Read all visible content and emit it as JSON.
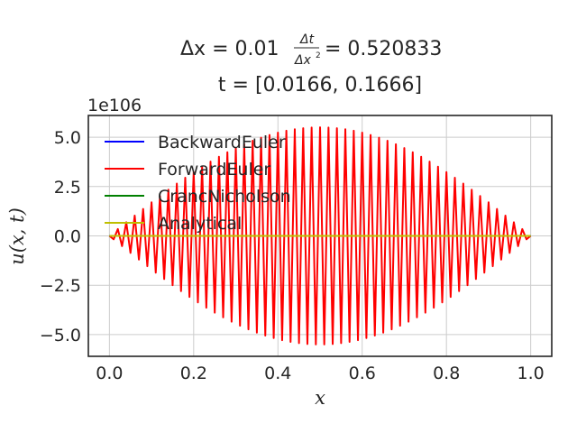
{
  "chart_data": {
    "type": "line",
    "title_line1_prefix": "Δx = 0.01",
    "title_line1_frac_num": "Δt",
    "title_line1_frac_den": "Δx",
    "title_line1_suffix": "= 0.520833",
    "title_line2": "t = [0.0166, 0.1666]",
    "xlabel": "x",
    "ylabel": "u(x, t)",
    "offset_text": "1e106",
    "xlim": [
      -0.05,
      1.05
    ],
    "ylim": [
      -6.1,
      6.1
    ],
    "y_scale_exponent": 106,
    "xticks": [
      0.0,
      0.2,
      0.4,
      0.6,
      0.8,
      1.0
    ],
    "xtick_labels": [
      "0.0",
      "0.2",
      "0.4",
      "0.6",
      "0.8",
      "1.0"
    ],
    "yticks": [
      -5.0,
      -2.5,
      0.0,
      2.5,
      5.0
    ],
    "ytick_labels": [
      "−5.0",
      "−2.5",
      "0.0",
      "2.5",
      "5.0"
    ],
    "grid": true,
    "legend_position": "upper-left",
    "forward_euler_envelope": {
      "description_of_shape": "sawtooth oscillation between +A(x) and -A(x), sign alternating each grid point",
      "peak_amplitude": 5.5,
      "peak_x": 0.5,
      "grid_step": 0.01,
      "x_range": [
        0.0,
        1.0
      ]
    },
    "series": [
      {
        "name": "BackwardEuler",
        "color": "#0000ff",
        "x": [
          0.0,
          1.0
        ],
        "y": [
          0.0,
          0.0
        ]
      },
      {
        "name": "ForwardEuler",
        "color": "#ff0000",
        "kind": "oscillating"
      },
      {
        "name": "CrancNicholson",
        "color": "#008000",
        "x": [
          0.0,
          1.0
        ],
        "y": [
          0.0,
          0.0
        ]
      },
      {
        "name": "Analytical",
        "color": "#bfbf00",
        "x": [
          0.0,
          1.0
        ],
        "y": [
          0.0,
          0.0
        ]
      }
    ]
  }
}
